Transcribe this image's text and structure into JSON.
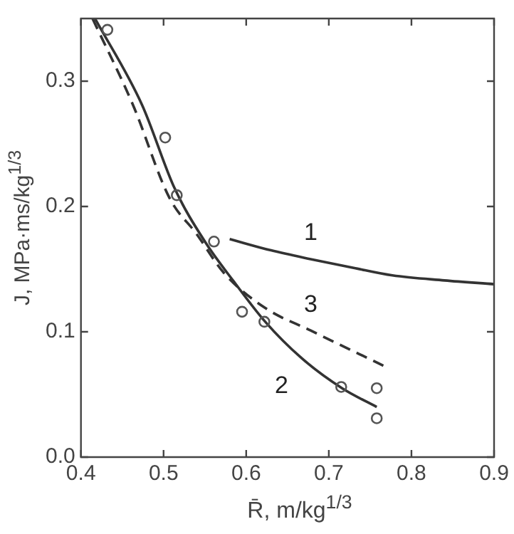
{
  "chart_data": {
    "type": "line",
    "xlabel": "R̄, m/kg$^{1/3}$",
    "ylabel": "J, MPa·ms/kg$^{1/3}$",
    "xlim": [
      0.4,
      0.9
    ],
    "xticks": [
      0.4,
      0.5,
      0.6,
      0.7,
      0.8,
      0.9
    ],
    "ylim": [
      0,
      0.35
    ],
    "yticks": [
      {
        "value": 0,
        "label": "0.0"
      },
      {
        "value": 0.1,
        "label": "0.1"
      },
      {
        "value": 0.2,
        "label": "0.2"
      },
      {
        "value": 0.3,
        "label": "0.3"
      }
    ],
    "grid": false,
    "legend": false,
    "series": [
      {
        "type": "line",
        "name": "1",
        "line_style": "solid",
        "color": "#333333",
        "x": [
          0.58,
          0.63,
          0.678,
          0.73,
          0.777,
          0.84,
          0.9
        ],
        "values": [
          0.174,
          0.165,
          0.158,
          0.151,
          0.145,
          0.141,
          0.138
        ]
      },
      {
        "type": "line",
        "name": "2",
        "line_style": "solid",
        "color": "#333333",
        "x": [
          0.417,
          0.474,
          0.513,
          0.551,
          0.584,
          0.623,
          0.667,
          0.716,
          0.758
        ],
        "values": [
          0.35,
          0.281,
          0.215,
          0.171,
          0.141,
          0.108,
          0.079,
          0.055,
          0.04
        ]
      },
      {
        "type": "line",
        "name": "3",
        "line_style": "dashed",
        "color": "#333333",
        "x": [
          0.414,
          0.463,
          0.507,
          0.54,
          0.573,
          0.623,
          0.678,
          0.766
        ],
        "values": [
          0.35,
          0.281,
          0.207,
          0.178,
          0.147,
          0.119,
          0.101,
          0.073
        ]
      },
      {
        "type": "scatter",
        "marker": "circle",
        "color": "#555555",
        "x": [
          0.432,
          0.502,
          0.516,
          0.561,
          0.595,
          0.622,
          0.715,
          0.758,
          0.758
        ],
        "values": [
          0.341,
          0.255,
          0.209,
          0.172,
          0.116,
          0.108,
          0.056,
          0.055,
          0.031
        ]
      }
    ]
  }
}
